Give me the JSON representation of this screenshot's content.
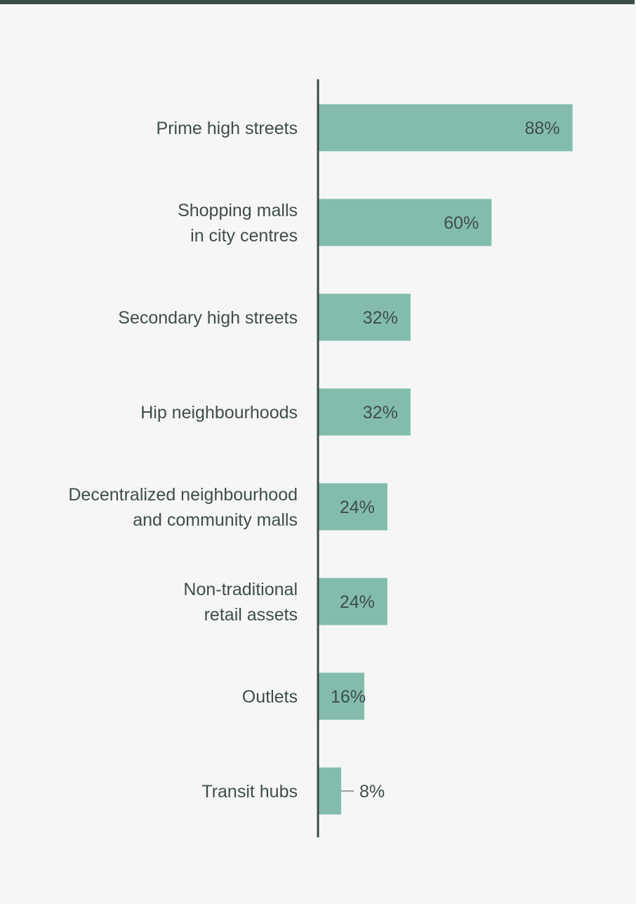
{
  "colors": {
    "bar": "#83bcad",
    "axis": "#3b4b49",
    "text": "#3f4d4b",
    "background": "#f6f6f6",
    "leader": "#9aa3a1"
  },
  "chart_data": {
    "type": "bar",
    "orientation": "horizontal",
    "unit": "%",
    "categories": [
      [
        "Prime high streets"
      ],
      [
        "Shopping malls",
        "in city centres"
      ],
      [
        "Secondary high streets"
      ],
      [
        "Hip neighbourhoods"
      ],
      [
        "Decentralized neighbourhood",
        "and community malls"
      ],
      [
        "Non-traditional",
        "retail assets"
      ],
      [
        "Outlets"
      ],
      [
        "Transit hubs"
      ]
    ],
    "values": [
      88,
      60,
      32,
      32,
      24,
      24,
      16,
      8
    ],
    "value_labels": [
      "88%",
      "60%",
      "32%",
      "32%",
      "24%",
      "24%",
      "16%",
      "8%"
    ],
    "xlim": [
      0,
      100
    ],
    "grid": false,
    "legend": "none"
  }
}
